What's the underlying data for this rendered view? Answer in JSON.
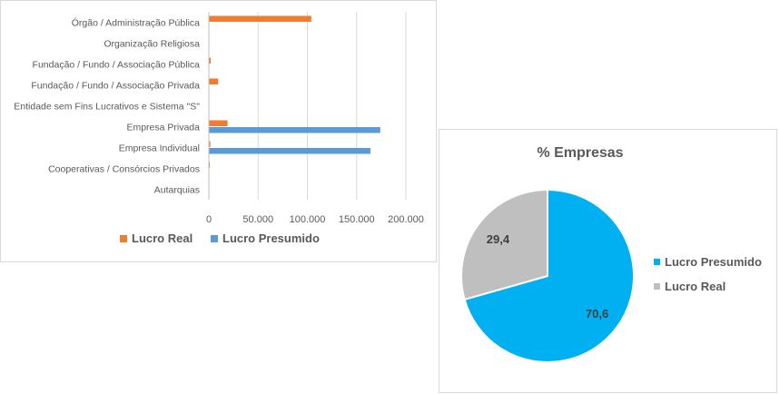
{
  "chart_data": [
    {
      "type": "bar",
      "orientation": "horizontal",
      "categories": [
        "Órgão / Administração Pública",
        "Organização Religiosa",
        "Fundação / Fundo / Associação Pública",
        "Fundação / Fundo / Associação Privada",
        "Entidade sem Fins Lucrativos e Sistema \"S\"",
        "Empresa Privada",
        "Empresa Individual",
        "Cooperativas / Consórcios Privados",
        "Autarquias"
      ],
      "series": [
        {
          "name": "Lucro Real",
          "color": "#ed7d31",
          "values": [
            104000,
            0,
            2000,
            9500,
            0,
            19000,
            1500,
            1000,
            0
          ]
        },
        {
          "name": "Lucro Presumido",
          "color": "#5b9bd5",
          "values": [
            0,
            0,
            0,
            0,
            0,
            174000,
            164000,
            0,
            0
          ]
        }
      ],
      "xlim": [
        0,
        200000
      ],
      "xticks": [
        "0",
        "50.000",
        "100.000",
        "150.000",
        "200.000"
      ],
      "gridlines": true,
      "legend_position": "bottom"
    },
    {
      "type": "pie",
      "title": "% Empresas",
      "labels": [
        "Lucro Presumido",
        "Lucro Real"
      ],
      "values": [
        70.6,
        29.4
      ],
      "value_labels": [
        "70,6",
        "29,4"
      ],
      "colors": [
        "#00b0f0",
        "#bfbfbf"
      ],
      "legend_position": "right"
    }
  ]
}
